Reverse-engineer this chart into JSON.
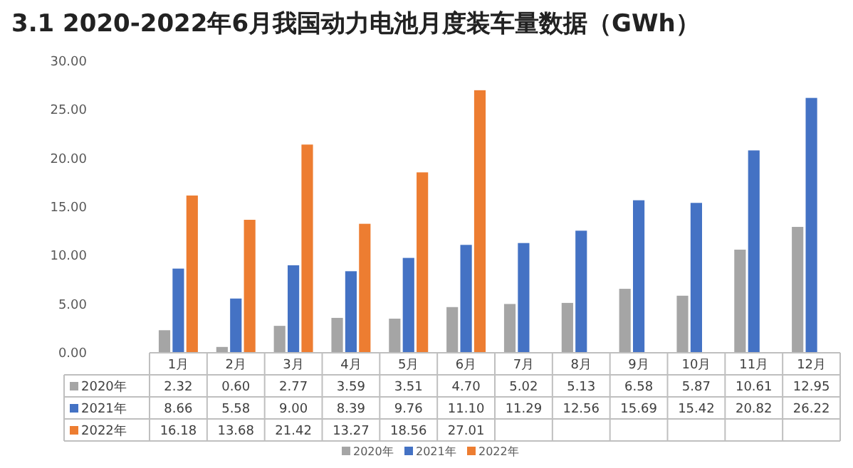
{
  "chart_data": {
    "type": "bar",
    "title": "3.1 2020-2022年6月我国动力电池月度装车量数据（GWh）",
    "categories": [
      "1月",
      "2月",
      "3月",
      "4月",
      "5月",
      "6月",
      "7月",
      "8月",
      "9月",
      "10月",
      "11月",
      "12月"
    ],
    "series": [
      {
        "name": "2020年",
        "color": "#a5a5a5",
        "values": [
          2.32,
          0.6,
          2.77,
          3.59,
          3.51,
          4.7,
          5.02,
          5.13,
          6.58,
          5.87,
          10.61,
          12.95
        ],
        "value_labels": [
          "2.32",
          "0.60",
          "2.77",
          "3.59",
          "3.51",
          "4.70",
          "5.02",
          "5.13",
          "6.58",
          "5.87",
          "10.61",
          "12.95"
        ]
      },
      {
        "name": "2021年",
        "color": "#4472c4",
        "values": [
          8.66,
          5.58,
          9.0,
          8.39,
          9.76,
          11.1,
          11.29,
          12.56,
          15.69,
          15.42,
          20.82,
          26.22
        ],
        "value_labels": [
          "8.66",
          "5.58",
          "9.00",
          "8.39",
          "9.76",
          "11.10",
          "11.29",
          "12.56",
          "15.69",
          "15.42",
          "20.82",
          "26.22"
        ]
      },
      {
        "name": "2022年",
        "color": "#ed7d31",
        "values": [
          16.18,
          13.68,
          21.42,
          13.27,
          18.56,
          27.01,
          null,
          null,
          null,
          null,
          null,
          null
        ],
        "value_labels": [
          "16.18",
          "13.68",
          "21.42",
          "13.27",
          "18.56",
          "27.01",
          null,
          null,
          null,
          null,
          null,
          null
        ]
      }
    ],
    "ylim": [
      0,
      30
    ],
    "yticks": [
      {
        "value": 0,
        "label": "0.00"
      },
      {
        "value": 5,
        "label": "5.00"
      },
      {
        "value": 10,
        "label": "10.00"
      },
      {
        "value": 15,
        "label": "15.00"
      },
      {
        "value": 20,
        "label": "20.00"
      },
      {
        "value": 25,
        "label": "25.00"
      },
      {
        "value": 30,
        "label": "30.00"
      }
    ],
    "legend": "bottom"
  }
}
